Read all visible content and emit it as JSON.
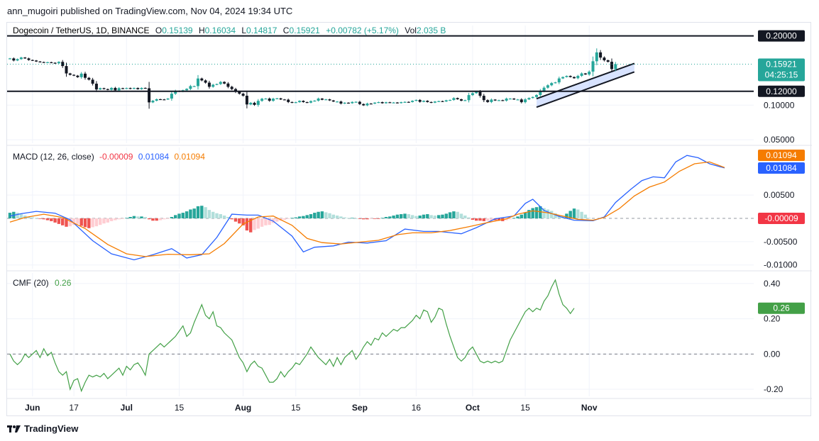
{
  "header": {
    "publish_line": "ann_mugoiri published on TradingView.com, Nov 04, 2024 19:34 UTC"
  },
  "footer": {
    "brand": "TradingView"
  },
  "colors": {
    "up": "#26a69a",
    "down": "#131722",
    "macd": "#2962ff",
    "signal": "#f57c00",
    "hist_pos_strong": "#26a69a",
    "hist_pos_weak": "#b2dfdb",
    "hist_neg_strong": "#ef5350",
    "hist_neg_weak": "#ffcdd2",
    "cmf": "#43a047",
    "level": "#131722",
    "channel": "#2962ff"
  },
  "chart_data": [
    {
      "type": "candlestick",
      "title": "Dogecoin / TetherUS, 1D, BINANCE",
      "legend": {
        "open_label": "O",
        "open": "0.15139",
        "high_label": "H",
        "high": "0.16034",
        "low_label": "L",
        "low": "0.14817",
        "close_label": "C",
        "close": "0.15921",
        "change": "+0.00782 (+5.17%)",
        "vol_label": "Vol",
        "vol": "2.035 B"
      },
      "y_ticks": [
        "0.10000",
        "0.05000"
      ],
      "ylim": [
        0.045,
        0.215
      ],
      "levels": [
        {
          "value": 0.2,
          "label": "0.20000"
        },
        {
          "value": 0.12,
          "label": "0.12000"
        }
      ],
      "last_price": {
        "value": 0.15921,
        "label": "0.15921",
        "countdown": "04:25:15"
      },
      "x_tick_labels": [
        {
          "label": "Jun",
          "day": 6
        },
        {
          "label": "17",
          "day": 17
        },
        {
          "label": "Jul",
          "day": 31
        },
        {
          "label": "15",
          "day": 45
        },
        {
          "label": "Aug",
          "day": 62
        },
        {
          "label": "15",
          "day": 76
        },
        {
          "label": "Sep",
          "day": 93
        },
        {
          "label": "16",
          "day": 108
        },
        {
          "label": "Oct",
          "day": 123
        },
        {
          "label": "15",
          "day": 137
        },
        {
          "label": "Nov",
          "day": 154
        }
      ],
      "closes": [
        0.1675,
        0.1645,
        0.1665,
        0.1688,
        0.1675,
        0.1652,
        0.1645,
        0.163,
        0.1622,
        0.162,
        0.162,
        0.1612,
        0.1605,
        0.1625,
        0.1565,
        0.1458,
        0.1438,
        0.1426,
        0.1404,
        0.1455,
        0.1395,
        0.1368,
        0.131,
        0.1227,
        0.1245,
        0.1232,
        0.1222,
        0.1249,
        0.1214,
        0.1245,
        0.1238,
        0.1247,
        0.1236,
        0.1248,
        0.1231,
        0.1249,
        0.1244,
        0.104,
        0.1064,
        0.1086,
        0.1083,
        0.1082,
        0.1095,
        0.1165,
        0.1205,
        0.1195,
        0.1215,
        0.1235,
        0.1275,
        0.1275,
        0.1385,
        0.1357,
        0.1325,
        0.1265,
        0.1295,
        0.1305,
        0.1335,
        0.1312,
        0.1265,
        0.1232,
        0.1192,
        0.1165,
        0.1136,
        0.101,
        0.1034,
        0.1004,
        0.1062,
        0.1092,
        0.1095,
        0.1063,
        0.1093,
        0.1098,
        0.1082,
        0.1079,
        0.1045,
        0.1036,
        0.1043,
        0.1062,
        0.1044,
        0.1036,
        0.1058,
        0.1065,
        0.1095,
        0.1078,
        0.1084,
        0.1068,
        0.1052,
        0.1052,
        0.1023,
        0.1035,
        0.1028,
        0.1046,
        0.1048,
        0.1016,
        0.0997,
        0.1023,
        0.1022,
        0.1036,
        0.1044,
        0.1028,
        0.1042,
        0.1037,
        0.1038,
        0.103,
        0.1043,
        0.1047,
        0.1045,
        0.1063,
        0.1075,
        0.1048,
        0.1063,
        0.1045,
        0.1036,
        0.1052,
        0.1058,
        0.1053,
        0.107,
        0.1075,
        0.1102,
        0.1085,
        0.1065,
        0.1072,
        0.1145,
        0.1173,
        0.1192,
        0.1135,
        0.1072,
        0.1045,
        0.108,
        0.1067,
        0.1072,
        0.1065,
        0.1095,
        0.1095,
        0.1082,
        0.1082,
        0.1043,
        0.1083,
        0.1103,
        0.1118,
        0.1146,
        0.1206,
        0.1252,
        0.1287,
        0.1319,
        0.1329,
        0.1386,
        0.1406,
        0.1422,
        0.1406,
        0.1389,
        0.1423,
        0.1458,
        0.1443,
        0.1484,
        0.1634,
        0.1762,
        0.1687,
        0.1648,
        0.1626,
        0.1521,
        0.1592
      ]
    },
    {
      "type": "line",
      "title": "MACD (12, 26, close)",
      "legend_values": [
        {
          "value": "-0.00009",
          "color": "#f23645"
        },
        {
          "value": "0.01084",
          "color": "#2962ff"
        },
        {
          "value": "0.01094",
          "color": "#f57c00"
        }
      ],
      "y_ticks": [
        "0.00500",
        "-0.00500",
        "-0.01000"
      ],
      "ylim": [
        -0.0108,
        0.0152
      ],
      "badges": [
        {
          "label": "0.01094",
          "color": "#f57c00"
        },
        {
          "label": "0.01084",
          "color": "#2962ff"
        },
        {
          "label": "-0.00009",
          "color": "#f23645"
        }
      ],
      "series": [
        {
          "name": "MACD",
          "color": "#2962ff",
          "points": [
            [
              0,
              0.0005
            ],
            [
              3,
              0.001
            ],
            [
              7,
              0.0015
            ],
            [
              12,
              0.0011
            ],
            [
              16,
              -0.0003
            ],
            [
              22,
              -0.0048
            ],
            [
              27,
              -0.0076
            ],
            [
              33,
              -0.0089
            ],
            [
              38,
              -0.0078
            ],
            [
              43,
              -0.0065
            ],
            [
              47,
              -0.0085
            ],
            [
              51,
              -0.0078
            ],
            [
              55,
              -0.0041
            ],
            [
              59,
              0.0009
            ],
            [
              63,
              0.0007
            ],
            [
              66,
              0.0007
            ],
            [
              70,
              -0.0006
            ],
            [
              75,
              -0.0038
            ],
            [
              78,
              -0.0072
            ],
            [
              81,
              -0.0062
            ],
            [
              86,
              -0.0059
            ],
            [
              90,
              -0.0051
            ],
            [
              95,
              -0.0053
            ],
            [
              100,
              -0.0048
            ],
            [
              105,
              -0.0023
            ],
            [
              110,
              -0.0028
            ],
            [
              114,
              -0.0028
            ],
            [
              120,
              -0.0033
            ],
            [
              124,
              -0.002
            ],
            [
              129,
              -0.0001
            ],
            [
              134,
              0.0005
            ],
            [
              137,
              0.0032
            ],
            [
              139,
              0.0041
            ],
            [
              142,
              0.0017
            ],
            [
              146,
              0.0004
            ],
            [
              150,
              -0.0004
            ],
            [
              155,
              -0.0005
            ],
            [
              158,
              0.0003
            ],
            [
              161,
              0.0034
            ],
            [
              165,
              0.0062
            ],
            [
              168,
              0.0081
            ],
            [
              171,
              0.0089
            ],
            [
              174,
              0.0087
            ],
            [
              177,
              0.0121
            ],
            [
              180,
              0.0135
            ],
            [
              183,
              0.013
            ],
            [
              186,
              0.0117
            ],
            [
              190,
              0.0108
            ]
          ]
        },
        {
          "name": "Signal",
          "color": "#f57c00",
          "points": [
            [
              0,
              -0.0008
            ],
            [
              4,
              0.0002
            ],
            [
              9,
              0.0009
            ],
            [
              14,
              0.0002
            ],
            [
              20,
              -0.0022
            ],
            [
              26,
              -0.0056
            ],
            [
              31,
              -0.0076
            ],
            [
              36,
              -0.0082
            ],
            [
              42,
              -0.0077
            ],
            [
              48,
              -0.0078
            ],
            [
              53,
              -0.0076
            ],
            [
              57,
              -0.0054
            ],
            [
              62,
              -0.0012
            ],
            [
              66,
              0.0003
            ],
            [
              70,
              0.0005
            ],
            [
              75,
              -0.0015
            ],
            [
              79,
              -0.0043
            ],
            [
              83,
              -0.0052
            ],
            [
              88,
              -0.0055
            ],
            [
              93,
              -0.0051
            ],
            [
              98,
              -0.0047
            ],
            [
              103,
              -0.0035
            ],
            [
              107,
              -0.0031
            ],
            [
              112,
              -0.0031
            ],
            [
              117,
              -0.0026
            ],
            [
              122,
              -0.0018
            ],
            [
              127,
              -0.0009
            ],
            [
              132,
              -0.0001
            ],
            [
              135,
              0.0009
            ],
            [
              139,
              0.0016
            ],
            [
              143,
              0.0012
            ],
            [
              147,
              0.0005
            ],
            [
              151,
              -0.0002
            ],
            [
              155,
              -0.0004
            ],
            [
              158,
              0.0002
            ],
            [
              162,
              0.0021
            ],
            [
              166,
              0.0048
            ],
            [
              170,
              0.0067
            ],
            [
              174,
              0.0078
            ],
            [
              178,
              0.0101
            ],
            [
              182,
              0.0117
            ],
            [
              186,
              0.0121
            ],
            [
              190,
              0.0109
            ]
          ]
        }
      ],
      "histogram": [
        0.0012,
        0.0014,
        0.0012,
        0.0009,
        0.0006,
        0.0003,
        0.0002,
        0.0001,
        -0.0001,
        -0.0002,
        -0.0004,
        -0.0006,
        -0.0009,
        -0.0012,
        -0.0015,
        -0.0018,
        -0.0017,
        -0.0014,
        -0.0012,
        -0.0016,
        -0.0019,
        -0.0021,
        -0.0019,
        -0.0017,
        -0.0014,
        -0.0011,
        -0.0009,
        -0.0006,
        -0.0004,
        -0.0002,
        -0.0001,
        0.0001,
        0.0003,
        0.0005,
        0.0004,
        0.0004,
        0.0003,
        -0.0002,
        -0.0005,
        -0.0005,
        -0.0004,
        -0.0002,
        -0.0001,
        0.0003,
        0.0007,
        0.001,
        0.0012,
        0.0015,
        0.0019,
        0.0021,
        0.0026,
        0.0027,
        0.0024,
        0.0018,
        0.0014,
        0.0011,
        0.0009,
        0.0006,
        0.0003,
        -0.0002,
        -0.0007,
        -0.0011,
        -0.0015,
        -0.0026,
        -0.003,
        -0.0025,
        -0.0022,
        -0.0018,
        -0.0015,
        -0.0014,
        -0.001,
        -0.0007,
        -0.0005,
        -0.0003,
        -0.0001,
        0.0001,
        0.0002,
        0.0004,
        0.0005,
        0.0007,
        0.0009,
        0.0012,
        0.0014,
        0.0015,
        0.0013,
        0.0011,
        0.0008,
        0.0006,
        0.0004,
        0.0002,
        0.0001,
        0.0001,
        0.0,
        -0.0001,
        -0.0002,
        -0.0002,
        -0.0001,
        -0.0001,
        -0.0001,
        0.0001,
        0.0003,
        0.0004,
        0.0006,
        0.0008,
        0.0009,
        0.001,
        0.0009,
        0.0007,
        0.0005,
        0.0006,
        0.0008,
        0.0009,
        0.0007,
        0.0006,
        0.0007,
        0.0008,
        0.001,
        0.0013,
        0.0015,
        0.0014,
        0.001,
        0.0006,
        0.0002,
        -0.0003,
        -0.0005,
        -0.0005,
        -0.0006,
        -0.0005,
        -0.0004,
        -0.0004,
        -0.0005,
        -0.0006,
        -0.0004,
        -0.0002,
        0.0001,
        0.0004,
        0.0008,
        0.0013,
        0.0018,
        0.0022,
        0.0024,
        0.0026,
        0.0022,
        0.0019,
        0.0016,
        0.0011,
        0.0006,
        0.0005,
        0.001,
        0.0016,
        0.0021,
        0.0019,
        0.0014,
        0.0008,
        0.0001
      ]
    },
    {
      "type": "line",
      "title": "CMF (20)",
      "legend_value": "0.26",
      "y_ticks": [
        "0.40",
        "0.20",
        "0.00",
        "-0.20"
      ],
      "ylim": [
        -0.24,
        0.46
      ],
      "zero_label": "0.00",
      "badge": {
        "label": "0.26",
        "color": "#43a047"
      },
      "series": [
        {
          "name": "CMF",
          "color": "#43a047",
          "values": [
            0.0,
            -0.04,
            -0.06,
            -0.04,
            0.0,
            -0.02,
            0.0,
            0.02,
            -0.02,
            0.03,
            -0.01,
            0.01,
            -0.05,
            -0.1,
            -0.12,
            -0.1,
            -0.2,
            -0.15,
            -0.14,
            -0.21,
            -0.16,
            -0.12,
            -0.13,
            -0.12,
            -0.13,
            -0.11,
            -0.14,
            -0.12,
            -0.1,
            -0.08,
            -0.12,
            -0.07,
            -0.09,
            -0.06,
            -0.05,
            -0.08,
            -0.12,
            0.0,
            0.02,
            0.04,
            0.06,
            0.04,
            0.06,
            0.08,
            0.1,
            0.13,
            0.16,
            0.1,
            0.12,
            0.18,
            0.23,
            0.28,
            0.22,
            0.2,
            0.24,
            0.16,
            0.15,
            0.12,
            0.1,
            0.08,
            0.03,
            -0.02,
            -0.05,
            -0.1,
            -0.06,
            -0.04,
            -0.07,
            -0.08,
            -0.12,
            -0.16,
            -0.16,
            -0.14,
            -0.1,
            -0.13,
            -0.1,
            -0.08,
            -0.05,
            -0.06,
            -0.03,
            0.0,
            0.04,
            0.01,
            -0.02,
            -0.04,
            -0.06,
            -0.03,
            -0.07,
            -0.02,
            -0.06,
            -0.02,
            0.0,
            0.02,
            -0.03,
            0.0,
            0.04,
            0.07,
            0.05,
            0.09,
            0.08,
            0.12,
            0.1,
            0.12,
            0.14,
            0.13,
            0.15,
            0.15,
            0.17,
            0.19,
            0.22,
            0.2,
            0.25,
            0.24,
            0.18,
            0.21,
            0.26,
            0.25,
            0.17,
            0.1,
            0.04,
            -0.02,
            -0.04,
            -0.02,
            0.02,
            0.04,
            0.0,
            -0.04,
            -0.05,
            -0.04,
            -0.05,
            -0.04,
            -0.05,
            -0.04,
            0.02,
            0.08,
            0.12,
            0.16,
            0.2,
            0.24,
            0.26,
            0.24,
            0.26,
            0.25,
            0.3,
            0.33,
            0.38,
            0.42,
            0.34,
            0.28,
            0.26,
            0.23,
            0.26
          ]
        }
      ]
    }
  ]
}
